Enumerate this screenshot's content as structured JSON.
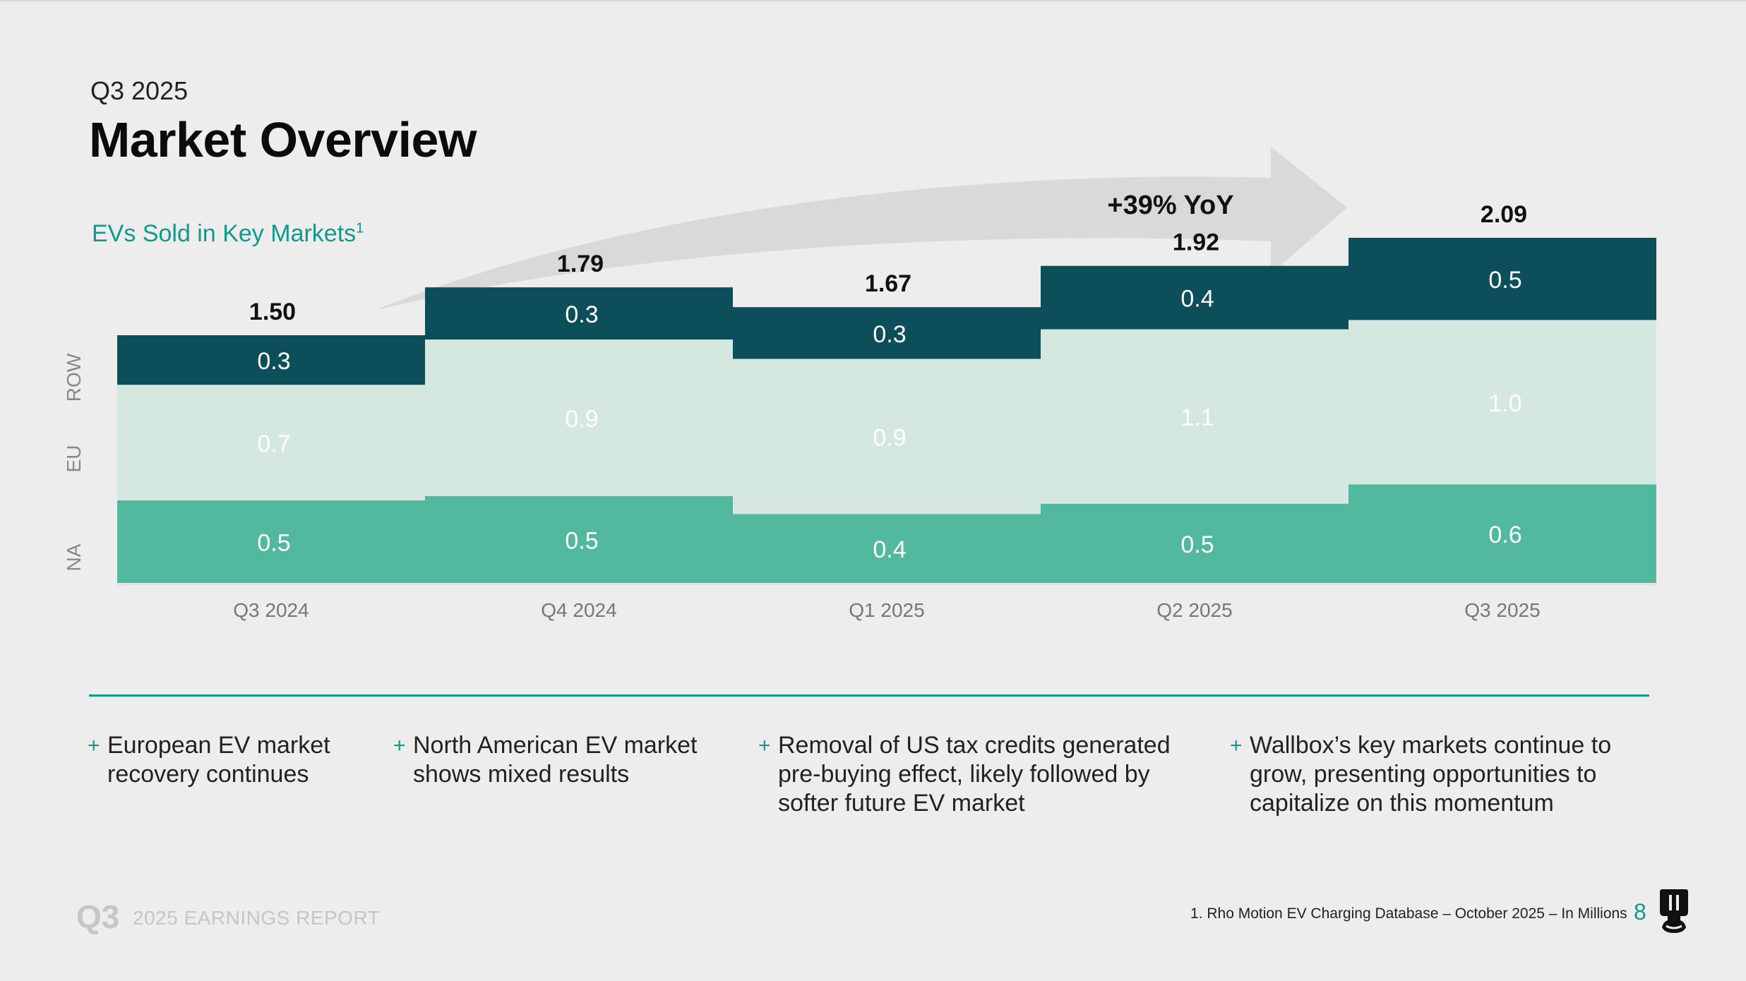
{
  "header": {
    "kicker": "Q3 2025",
    "title": "Market Overview",
    "subtitle": "EVs Sold in Key Markets",
    "subtitle_sup": "1"
  },
  "chart_data": {
    "type": "bar",
    "stacked": true,
    "categories": [
      "Q3 2024",
      "Q4 2024",
      "Q1 2025",
      "Q2 2025",
      "Q3 2025"
    ],
    "series": [
      {
        "name": "NA",
        "values": [
          0.5,
          0.5,
          0.4,
          0.5,
          0.6
        ],
        "value_labels": [
          "0.5",
          "0.5",
          "0.4",
          "0.5",
          "0.6"
        ],
        "color": "#52b89e"
      },
      {
        "name": "EU",
        "values": [
          0.7,
          0.9,
          0.9,
          1.1,
          1.0
        ],
        "value_labels": [
          "0.7",
          "0.9",
          "0.9",
          "1.1",
          "1.0"
        ],
        "color": "#d4e8df"
      },
      {
        "name": "ROW",
        "values": [
          0.3,
          0.3,
          0.3,
          0.4,
          0.5
        ],
        "value_labels": [
          "0.3",
          "0.3",
          "0.3",
          "0.4",
          "0.5"
        ],
        "color": "#0c4f5b"
      }
    ],
    "totals": [
      1.5,
      1.79,
      1.67,
      1.92,
      2.09
    ],
    "total_labels": [
      "1.50",
      "1.79",
      "1.67",
      "1.92",
      "2.09"
    ],
    "ylim": [
      0,
      2.2
    ],
    "grid": false,
    "legend": "left, vertical",
    "annotation": "+39% YoY",
    "unit": "Millions"
  },
  "bullets": [
    {
      "text": "European EV market\nrecovery continues"
    },
    {
      "text": "North American EV  market\nshows mixed results"
    },
    {
      "text": "Removal of US tax credits generated\npre-buying effect, likely followed by\nsofter future EV market"
    },
    {
      "text": "Wallbox’s key markets continue to\ngrow, presenting opportunities to\ncapitalize on this momentum"
    }
  ],
  "bullet_marker": "+",
  "footer": {
    "q3": "Q3",
    "report": "2025 EARNINGS REPORT",
    "footnote": "1. Rho Motion EV Charging Database – October 2025 – In Millions",
    "page_number": "8"
  },
  "colors": {
    "accent": "#13998a",
    "na": "#52b89e",
    "eu": "#d4e8df",
    "row": "#0c4f5b",
    "arrow": "#d9d9d9"
  }
}
